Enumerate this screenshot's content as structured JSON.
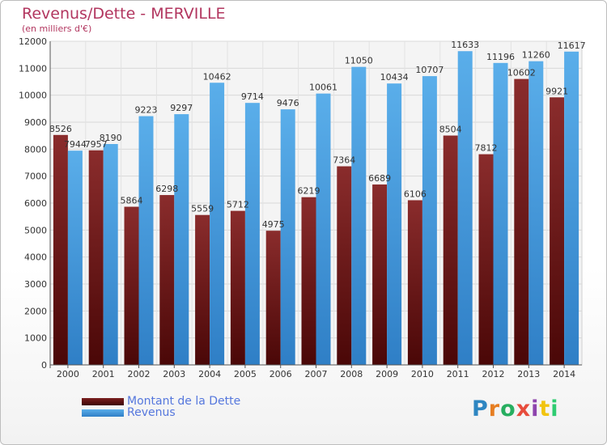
{
  "chart_data": {
    "type": "bar",
    "title": "Revenus/Dette - MERVILLE",
    "subtitle": "(en milliers d'€)",
    "categories": [
      "2000",
      "2001",
      "2002",
      "2003",
      "2004",
      "2005",
      "2006",
      "2007",
      "2008",
      "2009",
      "2010",
      "2011",
      "2012",
      "2013",
      "2014"
    ],
    "series": [
      {
        "name": "Montant de la Dette",
        "color": "#7a1f1f",
        "values": [
          8526,
          7957,
          5864,
          6298,
          5559,
          5712,
          4975,
          6219,
          7364,
          6689,
          6106,
          8504,
          7812,
          10602,
          9921
        ]
      },
      {
        "name": "Revenus",
        "color": "#4a9fe0",
        "values": [
          7944,
          8190,
          9223,
          9297,
          10462,
          9714,
          9476,
          10061,
          11050,
          10434,
          10707,
          11633,
          11196,
          11260,
          11617
        ]
      }
    ],
    "data_labels": [
      [
        "8526",
        "7957",
        "5864",
        "6298",
        "5559",
        "5712",
        "4975",
        "6219",
        "7364",
        "6689",
        "6106",
        "8504",
        "7812",
        "10602",
        "9921"
      ],
      [
        "7944",
        "8190",
        "9223",
        "9297",
        "10462",
        "9714",
        "9476",
        "10061",
        "11050",
        "10434",
        "10707",
        "11633",
        "11196",
        "11260",
        "11617"
      ]
    ],
    "yticks": [
      0,
      1000,
      2000,
      3000,
      4000,
      5000,
      6000,
      7000,
      8000,
      9000,
      10000,
      11000,
      12000
    ],
    "ylim": [
      0,
      12000
    ],
    "grid": true,
    "legend_position": "bottom-left"
  },
  "logo_text": "Proxiti"
}
